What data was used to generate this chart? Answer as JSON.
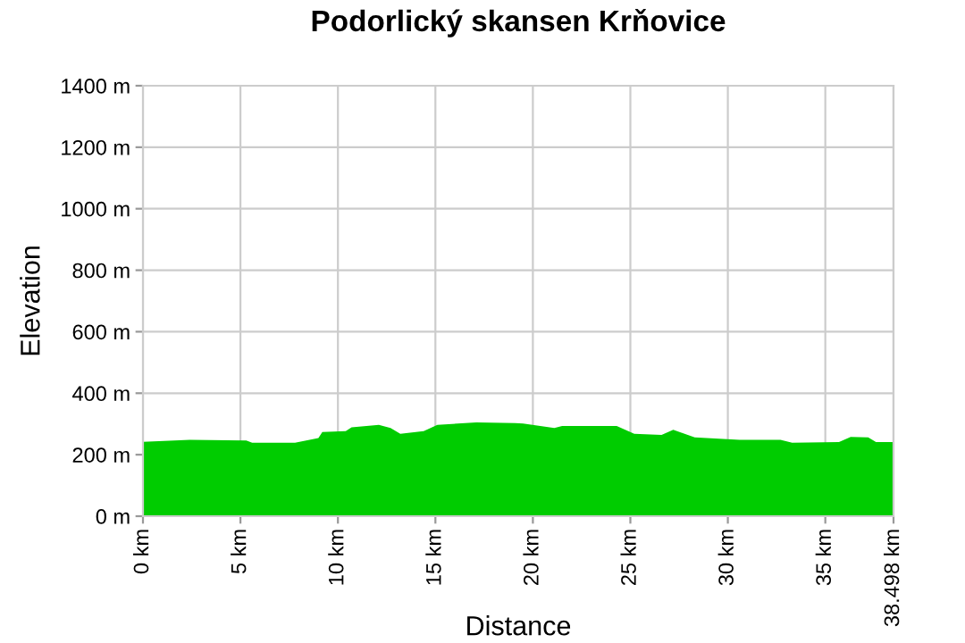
{
  "chart_data": {
    "type": "area",
    "title": "Podorlický skansen Krňovice",
    "xlabel": "Distance",
    "ylabel": "Elevation",
    "series": [
      {
        "color": "#00cc00",
        "x": [
          0,
          2.4,
          5.3,
          5.6,
          7.8,
          9.0,
          9.2,
          10.4,
          10.7,
          12.1,
          12.7,
          13.2,
          14.4,
          15.1,
          17.1,
          19.1,
          19.5,
          21.1,
          21.5,
          24.3,
          25.2,
          26.6,
          27.2,
          28.3,
          30.6,
          32.7,
          33.3,
          35.7,
          36.3,
          37.2,
          37.6,
          38.498
        ],
        "values": [
          242,
          248,
          246,
          239,
          239,
          254,
          274,
          277,
          289,
          297,
          287,
          268,
          277,
          297,
          305,
          303,
          301,
          287,
          293,
          293,
          268,
          264,
          281,
          256,
          248,
          248,
          239,
          241,
          258,
          256,
          241,
          241
        ]
      }
    ],
    "xlim": [
      0,
      38.498
    ],
    "xticks": [
      {
        "value": 0,
        "label": "0 km"
      },
      {
        "value": 5,
        "label": "5 km"
      },
      {
        "value": 10,
        "label": "10 km"
      },
      {
        "value": 15,
        "label": "15 km"
      },
      {
        "value": 20,
        "label": "20 km"
      },
      {
        "value": 25,
        "label": "25 km"
      },
      {
        "value": 30,
        "label": "30 km"
      },
      {
        "value": 35,
        "label": "35 km"
      },
      {
        "value": 38.498,
        "label": "38.498 km"
      }
    ],
    "ylim": [
      0,
      1400
    ],
    "yticks": [
      {
        "value": 0,
        "label": "0 m"
      },
      {
        "value": 200,
        "label": "200 m"
      },
      {
        "value": 400,
        "label": "400 m"
      },
      {
        "value": 600,
        "label": "600 m"
      },
      {
        "value": 800,
        "label": "800 m"
      },
      {
        "value": 1000,
        "label": "1000 m"
      },
      {
        "value": 1200,
        "label": "1200 m"
      },
      {
        "value": 1400,
        "label": "1400 m"
      }
    ],
    "grid": true
  }
}
